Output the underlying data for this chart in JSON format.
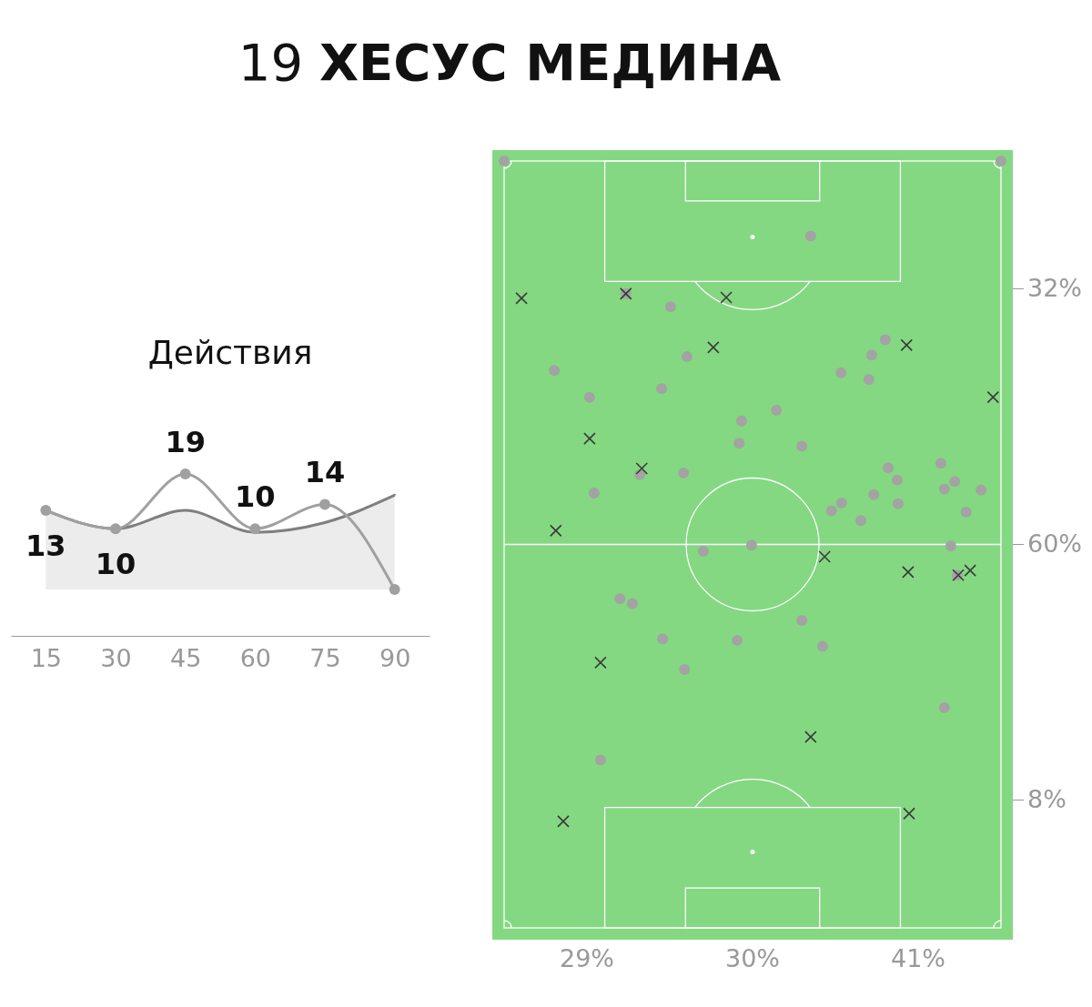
{
  "chart_data": [
    {
      "type": "line",
      "title": "19 ХЕСУС МЕДИНА",
      "subtitle": "Действия",
      "x": [
        15,
        30,
        45,
        60,
        75,
        90
      ],
      "xlim": [
        7.5,
        97.5
      ],
      "xticks": [
        15,
        30,
        45,
        60,
        75,
        90
      ],
      "tick_labels": "x",
      "series": [
        {
          "type": "line",
          "color": "#a0a0a0",
          "marker": "circle",
          "values": [
            13,
            10,
            19,
            10,
            14,
            0
          ],
          "value_labels": [
            "13",
            "10",
            "19",
            "10",
            "14",
            null
          ]
        },
        {
          "type": "area",
          "color": "#7f7f7f",
          "values": [
            13,
            10,
            13,
            9.4,
            11,
            15.5
          ]
        }
      ]
    },
    {
      "type": "other",
      "categories": [
        "29%",
        "30%",
        "41%"
      ],
      "y_categories": [
        "32%",
        "60%",
        "8%"
      ]
    }
  ]
}
